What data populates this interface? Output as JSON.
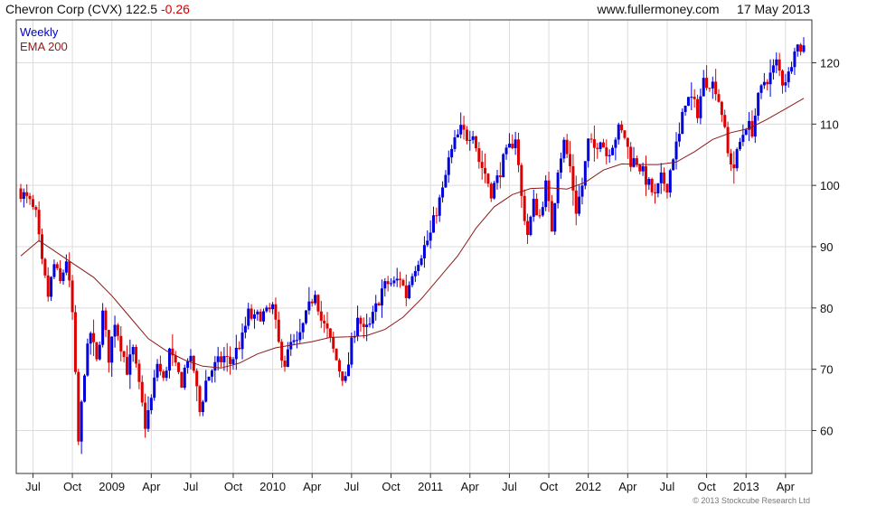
{
  "header": {
    "title": "Chevron Corp (CVX)",
    "price": "122.5",
    "change": "-0.26",
    "source": "www.fullermoney.com",
    "date": "17 May 2013"
  },
  "footer": {
    "credit": "© 2013 Stockcube Research Ltd"
  },
  "colors": {
    "up": "#0000dd",
    "down": "#dd0000",
    "ema": "#8b1a1a",
    "grid": "#dcdcdc"
  },
  "chart_data": {
    "type": "line",
    "subtype": "candlestick",
    "legend": [
      {
        "label": "Weekly",
        "color": "#0000cc"
      },
      {
        "label": "EMA 200",
        "color": "#8b1a1a"
      }
    ],
    "legend_position": "top-left",
    "ylim": [
      53,
      127
    ],
    "xlim": [
      0,
      258
    ],
    "y_axis_side": "right",
    "y_ticks": [
      60,
      70,
      80,
      90,
      100,
      110,
      120
    ],
    "x_ticks": [
      {
        "label": "Jul",
        "x": 4
      },
      {
        "label": "Oct",
        "x": 17
      },
      {
        "label": "2009",
        "x": 30
      },
      {
        "label": "Apr",
        "x": 43
      },
      {
        "label": "Jul",
        "x": 56
      },
      {
        "label": "Oct",
        "x": 70
      },
      {
        "label": "2010",
        "x": 83
      },
      {
        "label": "Apr",
        "x": 96
      },
      {
        "label": "Jul",
        "x": 109
      },
      {
        "label": "Oct",
        "x": 122
      },
      {
        "label": "2011",
        "x": 135
      },
      {
        "label": "Apr",
        "x": 148
      },
      {
        "label": "Jul",
        "x": 161
      },
      {
        "label": "Oct",
        "x": 174
      },
      {
        "label": "2012",
        "x": 187
      },
      {
        "label": "Apr",
        "x": 200
      },
      {
        "label": "Jul",
        "x": 213
      },
      {
        "label": "Oct",
        "x": 226
      },
      {
        "label": "2013",
        "x": 239
      },
      {
        "label": "Apr",
        "x": 252
      }
    ],
    "grid": true,
    "anchors_close": [
      [
        0,
        99
      ],
      [
        3,
        97
      ],
      [
        5,
        95
      ],
      [
        7,
        87
      ],
      [
        9,
        82
      ],
      [
        11,
        87
      ],
      [
        13,
        84
      ],
      [
        15,
        88
      ],
      [
        17,
        79
      ],
      [
        19,
        58
      ],
      [
        21,
        70
      ],
      [
        23,
        76
      ],
      [
        25,
        71
      ],
      [
        27,
        79
      ],
      [
        29,
        72
      ],
      [
        31,
        78
      ],
      [
        33,
        74
      ],
      [
        35,
        70
      ],
      [
        37,
        73
      ],
      [
        39,
        67
      ],
      [
        41,
        61
      ],
      [
        43,
        65
      ],
      [
        45,
        71
      ],
      [
        47,
        68
      ],
      [
        49,
        73
      ],
      [
        51,
        70
      ],
      [
        53,
        68
      ],
      [
        55,
        72
      ],
      [
        57,
        70
      ],
      [
        59,
        63
      ],
      [
        61,
        68
      ],
      [
        63,
        70
      ],
      [
        65,
        71
      ],
      [
        67,
        72
      ],
      [
        69,
        71
      ],
      [
        71,
        73
      ],
      [
        73,
        75
      ],
      [
        75,
        79
      ],
      [
        77,
        78
      ],
      [
        79,
        79
      ],
      [
        81,
        79
      ],
      [
        83,
        80
      ],
      [
        85,
        74
      ],
      [
        87,
        71
      ],
      [
        89,
        74
      ],
      [
        91,
        74
      ],
      [
        93,
        77
      ],
      [
        95,
        80
      ],
      [
        97,
        83
      ],
      [
        99,
        78
      ],
      [
        101,
        76
      ],
      [
        103,
        73
      ],
      [
        105,
        70
      ],
      [
        107,
        68
      ],
      [
        109,
        74
      ],
      [
        111,
        79
      ],
      [
        113,
        76
      ],
      [
        115,
        77
      ],
      [
        117,
        80
      ],
      [
        119,
        83
      ],
      [
        121,
        84
      ],
      [
        123,
        84
      ],
      [
        125,
        85
      ],
      [
        127,
        82
      ],
      [
        129,
        86
      ],
      [
        131,
        88
      ],
      [
        133,
        90
      ],
      [
        135,
        92
      ],
      [
        137,
        96
      ],
      [
        139,
        99
      ],
      [
        141,
        104
      ],
      [
        143,
        107
      ],
      [
        145,
        109
      ],
      [
        147,
        108
      ],
      [
        149,
        109
      ],
      [
        151,
        104
      ],
      [
        153,
        102
      ],
      [
        155,
        99
      ],
      [
        157,
        101
      ],
      [
        159,
        104
      ],
      [
        161,
        106
      ],
      [
        163,
        108
      ],
      [
        165,
        98
      ],
      [
        167,
        92
      ],
      [
        169,
        97
      ],
      [
        171,
        95
      ],
      [
        173,
        100
      ],
      [
        175,
        93
      ],
      [
        177,
        103
      ],
      [
        179,
        107
      ],
      [
        181,
        103
      ],
      [
        183,
        96
      ],
      [
        185,
        100
      ],
      [
        187,
        107
      ],
      [
        189,
        106
      ],
      [
        191,
        108
      ],
      [
        193,
        105
      ],
      [
        195,
        107
      ],
      [
        197,
        109
      ],
      [
        199,
        108
      ],
      [
        201,
        104
      ],
      [
        203,
        104
      ],
      [
        205,
        102
      ],
      [
        207,
        100
      ],
      [
        209,
        98
      ],
      [
        211,
        101
      ],
      [
        213,
        100
      ],
      [
        215,
        105
      ],
      [
        217,
        108
      ],
      [
        219,
        114
      ],
      [
        221,
        114
      ],
      [
        223,
        112
      ],
      [
        225,
        117
      ],
      [
        227,
        117
      ],
      [
        229,
        116
      ],
      [
        231,
        112
      ],
      [
        233,
        105
      ],
      [
        235,
        103
      ],
      [
        237,
        107
      ],
      [
        239,
        110
      ],
      [
        241,
        109
      ],
      [
        243,
        114
      ],
      [
        245,
        117
      ],
      [
        247,
        118
      ],
      [
        249,
        120
      ],
      [
        251,
        117
      ],
      [
        253,
        118
      ],
      [
        255,
        123
      ],
      [
        257,
        122.5
      ]
    ],
    "ema": [
      [
        0,
        88.5
      ],
      [
        6,
        91
      ],
      [
        12,
        89
      ],
      [
        18,
        87
      ],
      [
        24,
        85
      ],
      [
        30,
        82
      ],
      [
        36,
        78.5
      ],
      [
        42,
        75
      ],
      [
        48,
        73
      ],
      [
        54,
        71.5
      ],
      [
        60,
        70.5
      ],
      [
        66,
        70.2
      ],
      [
        72,
        71
      ],
      [
        78,
        72.5
      ],
      [
        84,
        73.5
      ],
      [
        90,
        74
      ],
      [
        96,
        74.5
      ],
      [
        102,
        75.2
      ],
      [
        108,
        75.3
      ],
      [
        114,
        75.5
      ],
      [
        120,
        76.5
      ],
      [
        126,
        78.5
      ],
      [
        132,
        81.5
      ],
      [
        138,
        85
      ],
      [
        144,
        88.5
      ],
      [
        150,
        93
      ],
      [
        156,
        96.5
      ],
      [
        162,
        98.5
      ],
      [
        168,
        99.5
      ],
      [
        174,
        99.6
      ],
      [
        180,
        99.4
      ],
      [
        186,
        100.5
      ],
      [
        192,
        102.5
      ],
      [
        198,
        103.5
      ],
      [
        204,
        103.4
      ],
      [
        210,
        103.4
      ],
      [
        216,
        103.8
      ],
      [
        222,
        105.5
      ],
      [
        228,
        107.5
      ],
      [
        234,
        108.6
      ],
      [
        240,
        109.3
      ],
      [
        246,
        110.8
      ],
      [
        252,
        112.5
      ],
      [
        258,
        114.2
      ]
    ]
  }
}
